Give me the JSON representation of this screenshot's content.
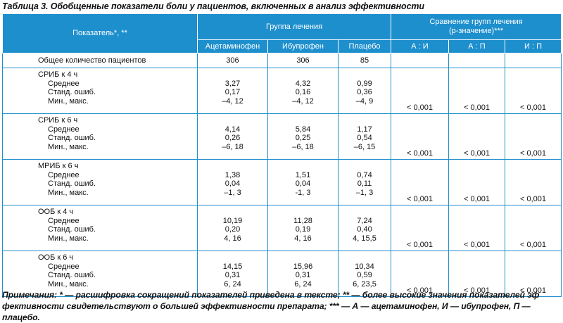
{
  "caption": "Таблица 3. Обобщенные показатели боли у пациентов, включенных в анализ эффективности",
  "header": {
    "indicator": "Показатель*, **",
    "group_label": "Группа лечения",
    "comparison_line1": "Сравнение групп лечения",
    "comparison_line2": "(p-значение)***",
    "groups": [
      "Ацетаминофен",
      "Ибупрофен",
      "Плацебо"
    ],
    "comparisons": [
      "А : И",
      "А : П",
      "И : П"
    ]
  },
  "total_row": {
    "label": "Общее количество пациентов",
    "values": [
      "306",
      "306",
      "85"
    ]
  },
  "blocks": [
    {
      "title": "СРИБ к 4 ч",
      "rows": [
        "Среднее",
        "Станд. ошиб.",
        "Мин., макс."
      ],
      "values": [
        [
          "3,27",
          "0,17",
          "–4, 12"
        ],
        [
          "4,32",
          "0,16",
          "–4, 12"
        ],
        [
          "0,99",
          "0,36",
          "–4, 9"
        ]
      ],
      "p": [
        "< 0,001",
        "< 0,001",
        "< 0,001"
      ]
    },
    {
      "title": "СРИБ к 6 ч",
      "rows": [
        "Среднее",
        "Станд. ошиб.",
        "Мин., макс."
      ],
      "values": [
        [
          "4,14",
          "0,26",
          "–6, 18"
        ],
        [
          "5,84",
          "0,25",
          "–6, 18"
        ],
        [
          "1,17",
          "0,54",
          "–6, 15"
        ]
      ],
      "p": [
        "< 0,001",
        "< 0,001",
        "< 0,001"
      ]
    },
    {
      "title": "МРИБ к 6 ч",
      "rows": [
        "Среднее",
        "Станд. ошиб.",
        "Мин., макс."
      ],
      "values": [
        [
          "1,38",
          "0,04",
          "–1, 3"
        ],
        [
          "1,51",
          "0,04",
          "-1, 3"
        ],
        [
          "0,74",
          "0,11",
          "–1, 3"
        ]
      ],
      "p": [
        "< 0,001",
        "< 0,001",
        "< 0,001"
      ]
    },
    {
      "title": "ООБ к 4 ч",
      "rows": [
        "Среднее",
        "Станд. ошиб.",
        "Мин., макс."
      ],
      "values": [
        [
          "10,19",
          "0,20",
          "4, 16"
        ],
        [
          "11,28",
          "0,19",
          "4, 16"
        ],
        [
          "7,24",
          "0,40",
          "4, 15,5"
        ]
      ],
      "p": [
        "< 0,001",
        "< 0,001",
        "< 0,001"
      ]
    },
    {
      "title": "ООБ к 6 ч",
      "rows": [
        "Среднее",
        "Станд. ошиб.",
        "Мин., макс."
      ],
      "values": [
        [
          "14,15",
          "0,31",
          "6, 24"
        ],
        [
          "15,96",
          "0,31",
          "6, 24"
        ],
        [
          "10,34",
          "0,59",
          "6, 23,5"
        ]
      ],
      "p": [
        "< 0,001",
        "< 0,001",
        "< 0,001"
      ]
    }
  ],
  "notes": {
    "line1": "Примечания: * — расшифровка сокращений показателей приведена в тексте; ** — более высокие значения показателей эф",
    "line2": "фективности свидетельствуют о большей эффективности препарата; *** — А — ацетаминофен, И — ибупрофен, П — плацебо."
  }
}
